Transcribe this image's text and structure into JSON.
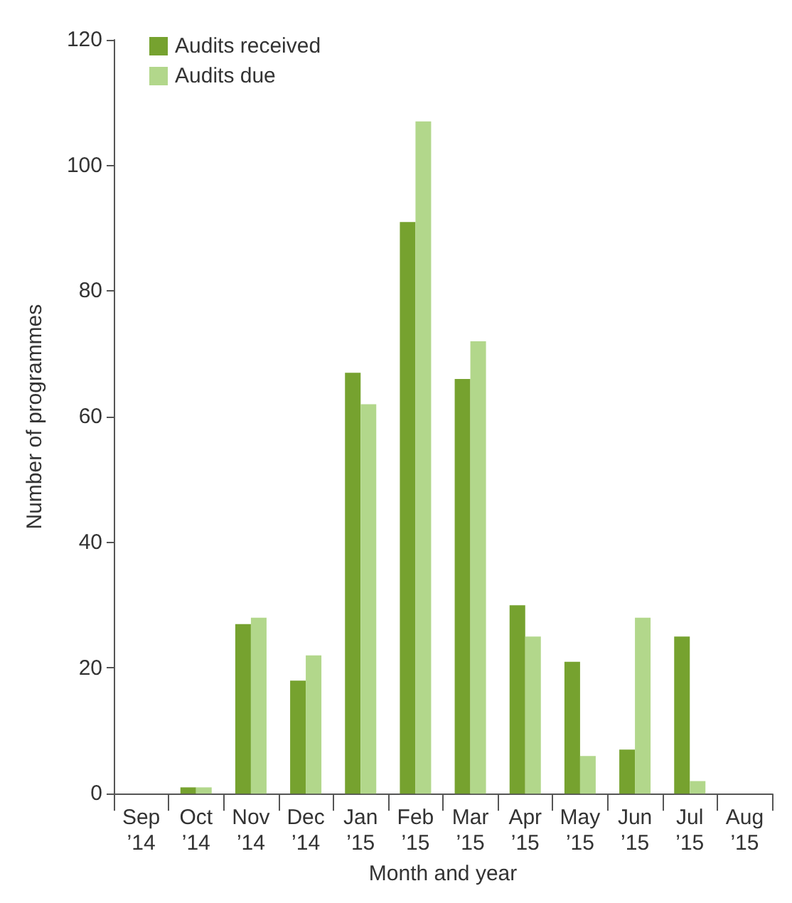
{
  "chart_data": {
    "type": "bar",
    "xlabel": "Month and year",
    "ylabel": "Number of programmes",
    "categories": [
      "Sep\n’14",
      "Oct\n’14",
      "Nov\n’14",
      "Dec\n’14",
      "Jan\n’15",
      "Feb\n’15",
      "Mar\n’15",
      "Apr\n’15",
      "May\n’15",
      "Jun\n’15",
      "Jul\n’15",
      "Aug\n’15"
    ],
    "series": [
      {
        "name": "Audits received",
        "color": "#76a22f",
        "values": [
          0,
          1,
          27,
          18,
          67,
          91,
          66,
          30,
          21,
          7,
          25,
          0
        ]
      },
      {
        "name": "Audits due",
        "color": "#b2d78b",
        "values": [
          0,
          1,
          28,
          22,
          62,
          107,
          72,
          25,
          6,
          28,
          2,
          0
        ]
      }
    ],
    "ylim": [
      0,
      120
    ],
    "yticks": [
      0,
      20,
      40,
      60,
      80,
      100,
      120
    ],
    "grid": false,
    "legend": "top left"
  }
}
